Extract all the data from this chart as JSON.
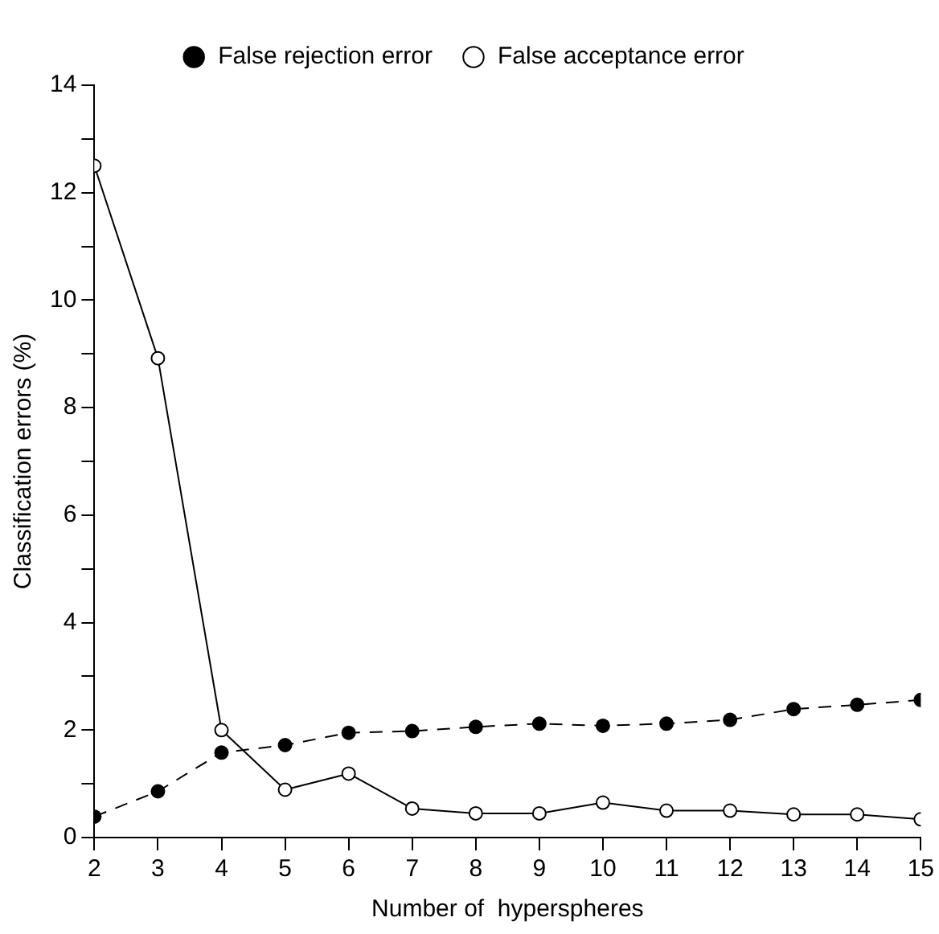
{
  "chart_data": {
    "type": "line",
    "xlabel": "Number of  hyperspheres",
    "ylabel": "Classification errors (%)",
    "x": [
      2,
      3,
      4,
      5,
      6,
      7,
      8,
      9,
      10,
      11,
      12,
      13,
      14,
      15
    ],
    "series": [
      {
        "name": "False rejection error",
        "color": "#000000",
        "line_style": "dashed",
        "marker": "circle",
        "values": [
          0.39,
          0.86,
          1.58,
          1.72,
          1.95,
          1.98,
          2.06,
          2.12,
          2.08,
          2.12,
          2.19,
          2.39,
          2.47,
          2.56
        ]
      },
      {
        "name": "False acceptance error",
        "color": "#000000",
        "line_style": "solid",
        "marker": "circle",
        "values": [
          12.5,
          8.92,
          2.0,
          0.89,
          1.19,
          0.54,
          0.45,
          0.45,
          0.65,
          0.5,
          0.5,
          0.43,
          0.43,
          0.34
        ]
      }
    ],
    "xlim": [
      2,
      15
    ],
    "xticks": [
      2,
      3,
      4,
      5,
      6,
      7,
      8,
      9,
      10,
      11,
      12,
      13,
      14,
      15
    ],
    "ylim": [
      0,
      14
    ],
    "yticks": [
      0,
      {
        "value": 1,
        "label": null
      },
      2,
      {
        "value": 3,
        "label": null
      },
      4,
      {
        "value": 5,
        "label": null
      },
      6,
      {
        "value": 7,
        "label": null
      },
      8,
      {
        "value": 9,
        "label": null
      },
      10,
      {
        "value": 11,
        "label": null
      },
      12,
      {
        "value": 13,
        "label": null
      },
      14
    ],
    "grid": false,
    "legend": "top"
  }
}
